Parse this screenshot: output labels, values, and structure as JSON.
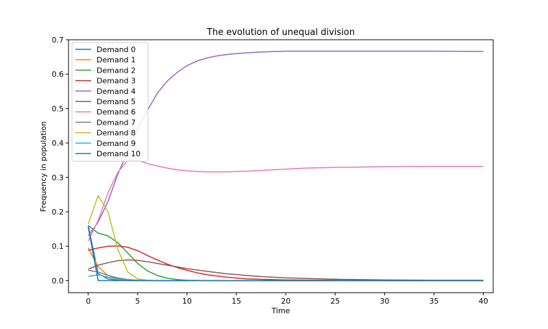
{
  "chart_data": {
    "type": "line",
    "title": "The evolution of unequal division",
    "xlabel": "Time",
    "ylabel": "Frequency in population",
    "xlim": [
      -2,
      41
    ],
    "ylim": [
      -0.035,
      0.7
    ],
    "xticks": [
      0,
      5,
      10,
      15,
      20,
      25,
      30,
      35,
      40
    ],
    "yticks": [
      0.0,
      0.1,
      0.2,
      0.3,
      0.4,
      0.5,
      0.6,
      0.7
    ],
    "xtick_labels": [
      "0",
      "5",
      "10",
      "15",
      "20",
      "25",
      "30",
      "35",
      "40"
    ],
    "ytick_labels": [
      "0.0",
      "0.1",
      "0.2",
      "0.3",
      "0.4",
      "0.5",
      "0.6",
      "0.7"
    ],
    "grid": false,
    "legend_position": "top-left",
    "series": [
      {
        "name": "Demand 0",
        "color": "#1f77b4",
        "x": [
          0,
          1,
          2,
          3,
          4,
          5,
          6,
          8,
          10,
          15,
          20,
          25,
          30,
          35,
          40
        ],
        "y": [
          0.16,
          0.02,
          0.005,
          0.001,
          0,
          0,
          0,
          0,
          0,
          0,
          0,
          0,
          0,
          0,
          0
        ]
      },
      {
        "name": "Demand 1",
        "color": "#ff7f0e",
        "x": [
          0,
          1,
          2,
          3,
          4,
          5,
          6,
          8,
          10,
          15,
          20,
          25,
          30,
          35,
          40
        ],
        "y": [
          0.095,
          0.04,
          0.015,
          0.005,
          0.001,
          0,
          0,
          0,
          0,
          0,
          0,
          0,
          0,
          0,
          0
        ]
      },
      {
        "name": "Demand 2",
        "color": "#2ca02c",
        "x": [
          0,
          1,
          2,
          3,
          4,
          5,
          6,
          7,
          8,
          9,
          10,
          12,
          15,
          20,
          25,
          30,
          35,
          40
        ],
        "y": [
          0.16,
          0.138,
          0.13,
          0.11,
          0.08,
          0.05,
          0.028,
          0.015,
          0.007,
          0.003,
          0.001,
          0,
          0,
          0,
          0,
          0,
          0,
          0
        ]
      },
      {
        "name": "Demand 3",
        "color": "#d62728",
        "x": [
          0,
          1,
          2,
          3,
          4,
          5,
          6,
          7,
          8,
          9,
          10,
          11,
          12,
          14,
          16,
          20,
          25,
          30,
          35,
          40
        ],
        "y": [
          0.088,
          0.095,
          0.1,
          0.101,
          0.097,
          0.087,
          0.073,
          0.06,
          0.048,
          0.038,
          0.03,
          0.023,
          0.017,
          0.01,
          0.005,
          0.002,
          0.001,
          0,
          0,
          0
        ]
      },
      {
        "name": "Demand 4",
        "color": "#9467bd",
        "x": [
          0,
          1,
          2,
          3,
          4,
          5,
          6,
          7,
          8,
          9,
          10,
          11,
          12,
          13,
          14,
          15,
          16,
          18,
          20,
          22,
          25,
          30,
          35,
          40
        ],
        "y": [
          0.13,
          0.17,
          0.23,
          0.31,
          0.375,
          0.44,
          0.495,
          0.545,
          0.58,
          0.605,
          0.625,
          0.638,
          0.647,
          0.653,
          0.657,
          0.66,
          0.662,
          0.665,
          0.667,
          0.667,
          0.667,
          0.667,
          0.667,
          0.666
        ]
      },
      {
        "name": "Demand 5",
        "color": "#8c564b",
        "x": [
          0,
          1,
          2,
          3,
          4,
          5,
          6,
          7,
          8,
          10,
          12,
          14,
          16,
          18,
          20,
          25,
          30,
          35,
          40
        ],
        "y": [
          0.033,
          0.045,
          0.052,
          0.058,
          0.06,
          0.059,
          0.055,
          0.05,
          0.045,
          0.035,
          0.027,
          0.02,
          0.015,
          0.011,
          0.008,
          0.004,
          0.002,
          0.001,
          0.001
        ]
      },
      {
        "name": "Demand 6",
        "color": "#e377c2",
        "x": [
          0,
          1,
          2,
          3,
          4,
          5,
          6,
          7,
          8,
          9,
          10,
          11,
          12,
          13,
          14,
          15,
          16,
          18,
          20,
          22,
          25,
          30,
          35,
          40
        ],
        "y": [
          0.115,
          0.175,
          0.255,
          0.315,
          0.35,
          0.35,
          0.34,
          0.333,
          0.327,
          0.322,
          0.319,
          0.317,
          0.316,
          0.316,
          0.316,
          0.317,
          0.318,
          0.321,
          0.324,
          0.327,
          0.329,
          0.331,
          0.332,
          0.332
        ]
      },
      {
        "name": "Demand 7",
        "color": "#7f7f7f",
        "x": [
          0,
          1,
          2,
          3,
          4,
          5,
          6,
          8,
          10,
          15,
          20,
          25,
          30,
          35,
          40
        ],
        "y": [
          0.03,
          0.025,
          0.015,
          0.008,
          0.003,
          0.001,
          0,
          0,
          0,
          0,
          0,
          0,
          0,
          0,
          0
        ]
      },
      {
        "name": "Demand 8",
        "color": "#bcbd22",
        "x": [
          0,
          1,
          2,
          3,
          4,
          5,
          6,
          7,
          8,
          10,
          15,
          20,
          25,
          30,
          35,
          40
        ],
        "y": [
          0.165,
          0.247,
          0.2,
          0.09,
          0.025,
          0.005,
          0.001,
          0,
          0,
          0,
          0,
          0,
          0,
          0,
          0,
          0
        ]
      },
      {
        "name": "Demand 9",
        "color": "#17becf",
        "x": [
          0,
          1,
          2,
          3,
          4,
          5,
          6,
          8,
          10,
          15,
          20,
          25,
          30,
          35,
          40
        ],
        "y": [
          0.012,
          0.017,
          0.01,
          0.004,
          0.001,
          0,
          0,
          0,
          0,
          0,
          0,
          0,
          0,
          0,
          0
        ]
      },
      {
        "name": "Demand 10",
        "color": "#1f77b4",
        "x": [
          0,
          1,
          2,
          3,
          4,
          5,
          6,
          8,
          10,
          15,
          20,
          25,
          30,
          35,
          40
        ],
        "y": [
          0.155,
          0.0,
          0,
          0,
          0,
          0,
          0,
          0,
          0,
          0,
          0,
          0,
          0,
          0,
          0
        ]
      }
    ]
  }
}
